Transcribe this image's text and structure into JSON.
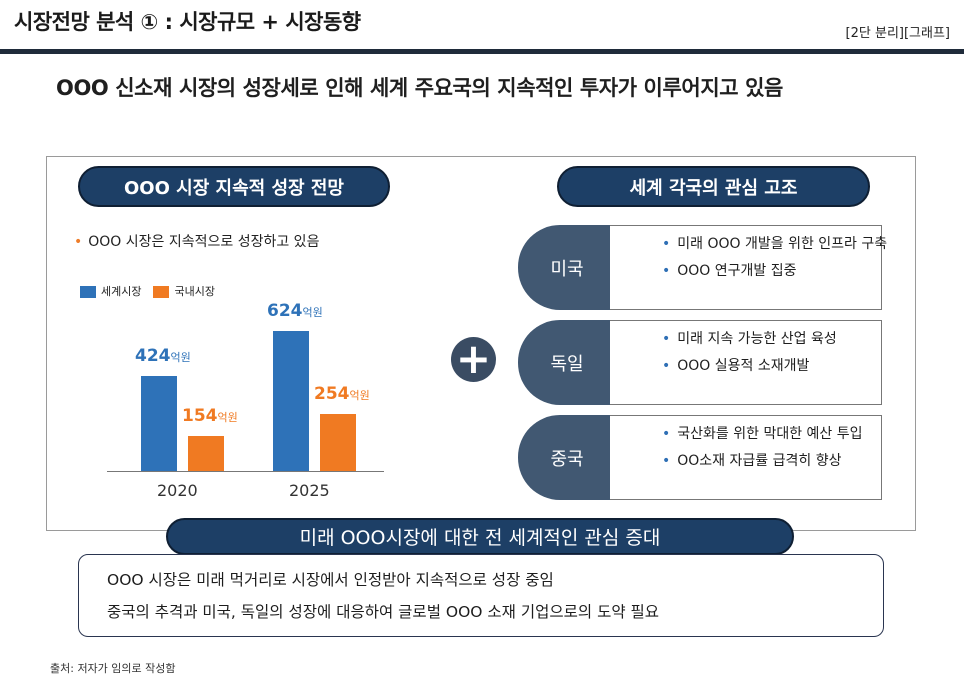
{
  "header": {
    "title": "시장전망 분석 ① : 시장규모 + 시장동향",
    "tag": "[2단 분리][그래프]"
  },
  "headline": "OOO 신소재 시장의 성장세로 인해 세계 주요국의 지속적인 투자가 이루어지고 있음",
  "left_panel": {
    "pill": "OOO 시장 지속적 성장 전망",
    "bullet": "OOO 시장은 지속적으로 성장하고 있음"
  },
  "right_panel": {
    "pill": "세계 각국의 관심 고조",
    "countries": [
      {
        "name": "미국",
        "points": [
          "미래 OOO 개발을 위한 인프라 구축",
          "OOO 연구개발 집중"
        ]
      },
      {
        "name": "독일",
        "points": [
          "미래 지속 가능한 산업 육성",
          "OOO 실용적 소재개발"
        ]
      },
      {
        "name": "중국",
        "points": [
          "국산화를 위한 막대한 예산 투입",
          "OO소재 자급률 급격히 향상"
        ]
      }
    ]
  },
  "chart_data": {
    "type": "bar",
    "categories": [
      "2020",
      "2025"
    ],
    "unit": "억원",
    "series": [
      {
        "name": "세계시장",
        "values": [
          424,
          624
        ],
        "color": "#2e72b8"
      },
      {
        "name": "국내시장",
        "values": [
          154,
          254
        ],
        "color": "#f07a22"
      }
    ],
    "ylim": [
      0,
      700
    ]
  },
  "banner": "미래 OOO시장에 대한 전 세계적인 관심 증대",
  "summary": [
    "OOO 시장은 미래 먹거리로 시장에서 인정받아 지속적으로 성장 중임",
    "중국의 추격과 미국, 독일의 성장에 대응하여 글로벌 OOO 소재 기업으로의 도약 필요"
  ],
  "source": "출처: 저자가 임의로 작성함",
  "plus_symbol": "+",
  "bullet_symbol": "•"
}
